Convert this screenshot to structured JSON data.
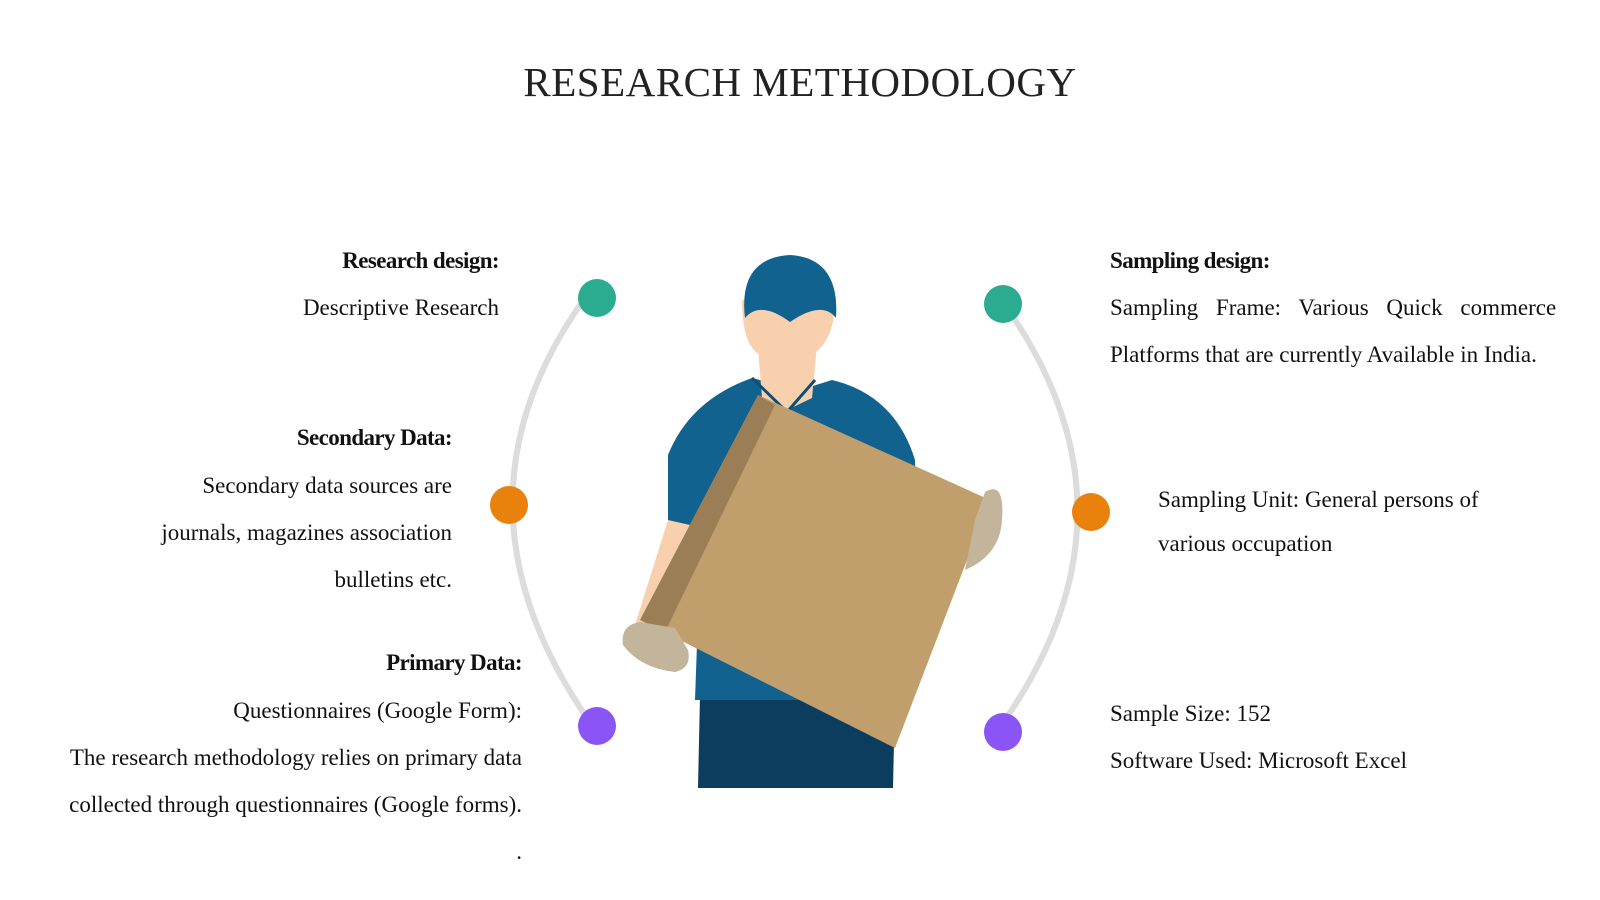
{
  "slide": {
    "title": "RESEARCH METHODOLOGY"
  },
  "left": {
    "research_design": {
      "heading": "Research design:",
      "text": "Descriptive Research"
    },
    "secondary_data": {
      "heading": "Secondary Data:",
      "line1": "Secondary data sources are",
      "line2": "journals, magazines association",
      "line3": "bulletins etc."
    },
    "primary_data": {
      "heading": "Primary Data:",
      "line1": "Questionnaires (Google Form):",
      "line2": "The research methodology relies on primary data",
      "line3": "collected through questionnaires (Google forms).",
      "line4": "."
    }
  },
  "right": {
    "sampling_design": {
      "heading": "Sampling design:",
      "line1": "Sampling Frame: Various Quick commerce",
      "line2": "Platforms that are currently Available in India."
    },
    "sampling_unit": {
      "line1": "Sampling Unit:  General persons of",
      "line2": "various occupation"
    },
    "sample": {
      "size": "Sample Size: 152",
      "software": "Software Used: Microsoft Excel"
    }
  },
  "colors": {
    "teal": "#2bab8f",
    "orange": "#e8820c",
    "purple": "#8b55f5",
    "arc": "#dcdcdc",
    "cap": "#11628f",
    "shirt": "#11628f",
    "pants": "#0c3d5e",
    "skin": "#f9d0ad",
    "box": "#c19f6c",
    "box_side": "#9c7e56",
    "glove": "#c2b59c"
  }
}
